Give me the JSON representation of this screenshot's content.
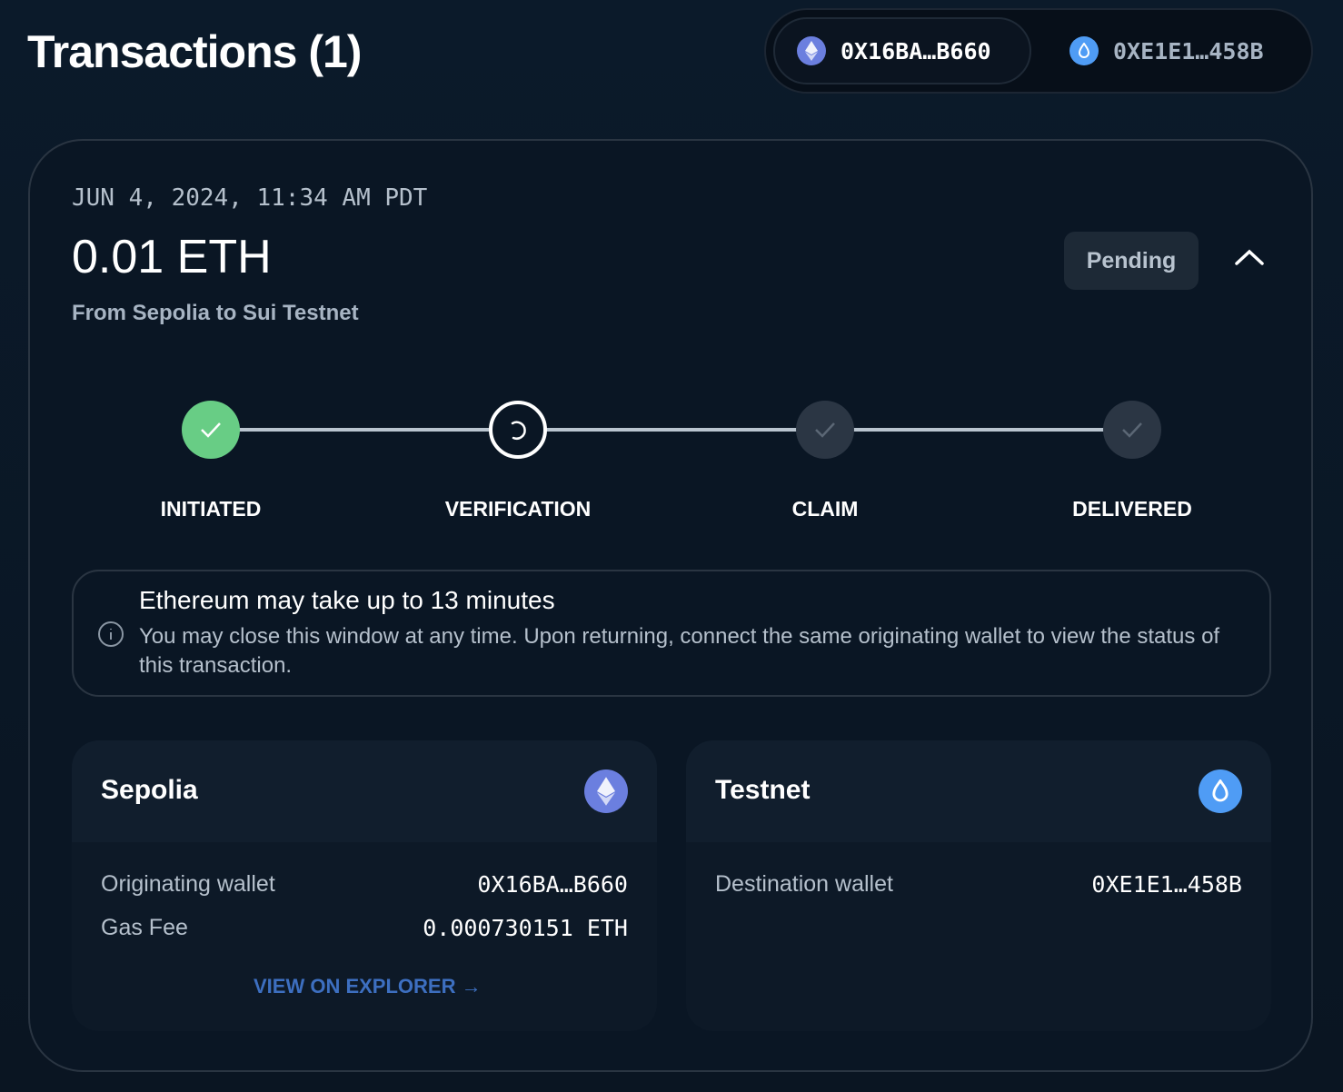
{
  "header": {
    "title": "Transactions (1)",
    "wallets": [
      {
        "icon": "ethereum-icon",
        "address": "0X16BA…B660"
      },
      {
        "icon": "sui-icon",
        "address": "0XE1E1…458B"
      }
    ]
  },
  "transaction": {
    "date": "JUN 4, 2024, 11:34 AM PDT",
    "amount": "0.01 ETH",
    "route": "From Sepolia to Sui Testnet",
    "status": "Pending",
    "steps": [
      {
        "label": "INITIATED",
        "state": "complete"
      },
      {
        "label": "VERIFICATION",
        "state": "in-progress"
      },
      {
        "label": "CLAIM",
        "state": "pending"
      },
      {
        "label": "DELIVERED",
        "state": "pending"
      }
    ],
    "notice": {
      "title": "Ethereum may take up to 13 minutes",
      "body": "You may close this window at any time. Upon returning, connect the same originating wallet to view the status of this transaction."
    },
    "source": {
      "chain": "Sepolia",
      "wallet_label": "Originating wallet",
      "wallet": "0X16BA…B660",
      "fee_label": "Gas Fee",
      "fee": "0.000730151 ETH",
      "explorer": "VIEW ON EXPLORER →"
    },
    "destination": {
      "chain": "Testnet",
      "wallet_label": "Destination wallet",
      "wallet": "0XE1E1…458B"
    }
  },
  "colors": {
    "complete": "#68cd85",
    "pending_step": "#2b3644",
    "link": "#3d6fc0"
  }
}
